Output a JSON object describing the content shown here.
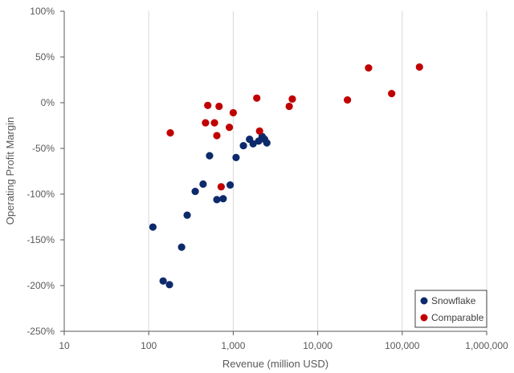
{
  "chart_data": {
    "type": "scatter",
    "xlabel": "Revenue (million USD)",
    "ylabel": "Operating Profit Margin",
    "x_scale": "log",
    "xlim": [
      10,
      1000000
    ],
    "ylim": [
      -250,
      100
    ],
    "x_tick_values": [
      10,
      100,
      1000,
      10000,
      100000,
      1000000
    ],
    "x_tick_labels": [
      "10",
      "100",
      "1,000",
      "10,000",
      "100,000",
      "1,000,000"
    ],
    "y_tick_values": [
      100,
      50,
      0,
      -50,
      -100,
      -150,
      -200,
      -250
    ],
    "y_tick_labels": [
      "100%",
      "50%",
      "0%",
      "-50%",
      "-100%",
      "-150%",
      "-200%",
      "-250%"
    ],
    "grid": "vertical",
    "legend_position": "bottom-right",
    "series": [
      {
        "name": "Snowflake",
        "color": "#0d2a6b",
        "points": [
          {
            "x": 112,
            "y": -136
          },
          {
            "x": 148,
            "y": -195
          },
          {
            "x": 176,
            "y": -199
          },
          {
            "x": 245,
            "y": -158
          },
          {
            "x": 285,
            "y": -123
          },
          {
            "x": 355,
            "y": -97
          },
          {
            "x": 440,
            "y": -89
          },
          {
            "x": 525,
            "y": -58
          },
          {
            "x": 640,
            "y": -106
          },
          {
            "x": 760,
            "y": -105
          },
          {
            "x": 920,
            "y": -90
          },
          {
            "x": 1080,
            "y": -60
          },
          {
            "x": 1320,
            "y": -47
          },
          {
            "x": 1560,
            "y": -40
          },
          {
            "x": 1720,
            "y": -45
          },
          {
            "x": 2000,
            "y": -42
          },
          {
            "x": 2200,
            "y": -37
          },
          {
            "x": 2350,
            "y": -40
          },
          {
            "x": 2500,
            "y": -44
          }
        ]
      },
      {
        "name": "Comparable",
        "color": "#c00000",
        "points": [
          {
            "x": 180,
            "y": -33
          },
          {
            "x": 470,
            "y": -22
          },
          {
            "x": 500,
            "y": -3
          },
          {
            "x": 600,
            "y": -22
          },
          {
            "x": 640,
            "y": -36
          },
          {
            "x": 680,
            "y": -4
          },
          {
            "x": 720,
            "y": -92
          },
          {
            "x": 900,
            "y": -27
          },
          {
            "x": 1000,
            "y": -11
          },
          {
            "x": 1900,
            "y": 5
          },
          {
            "x": 2050,
            "y": -31
          },
          {
            "x": 4600,
            "y": -4
          },
          {
            "x": 5000,
            "y": 4
          },
          {
            "x": 22500,
            "y": 3
          },
          {
            "x": 40000,
            "y": 38
          },
          {
            "x": 75000,
            "y": 10
          },
          {
            "x": 160000,
            "y": 39
          }
        ]
      }
    ]
  }
}
